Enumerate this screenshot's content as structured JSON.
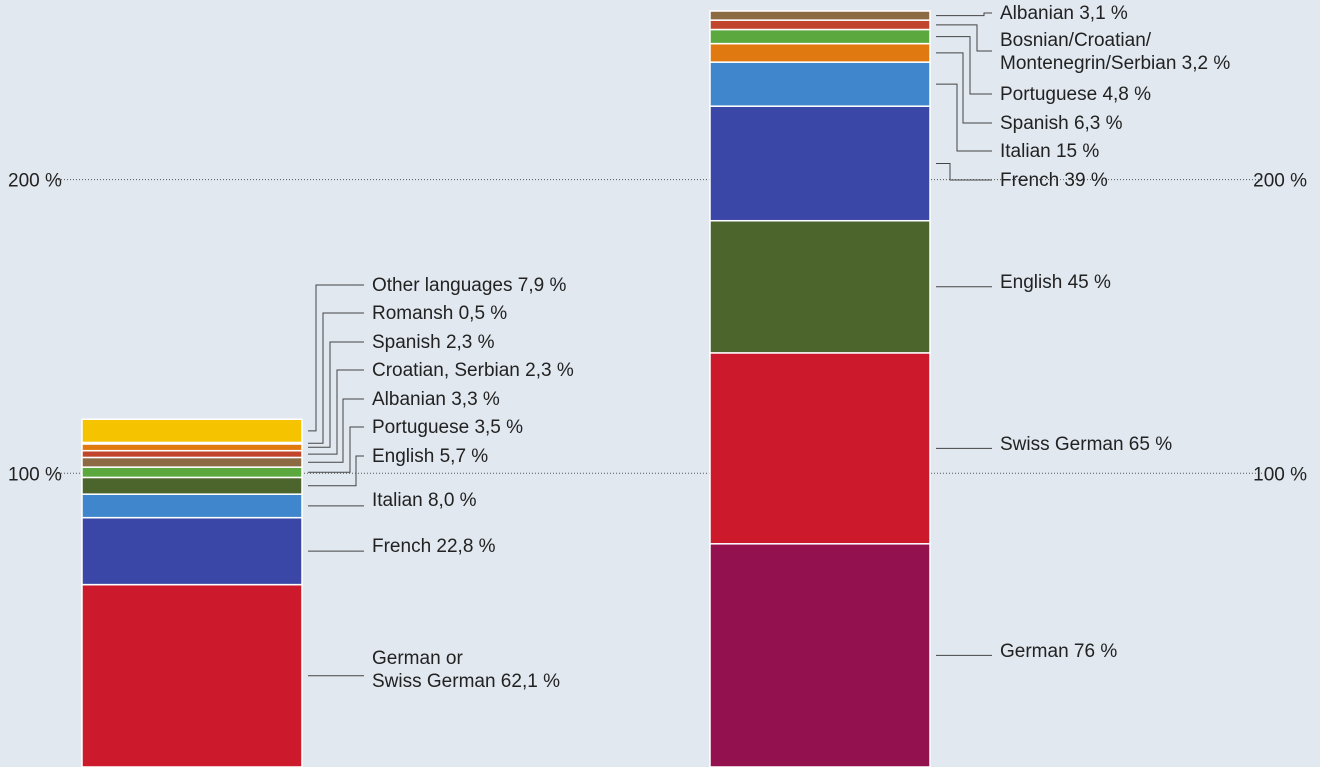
{
  "chart_data": {
    "type": "bar",
    "stacked": true,
    "y_unit": "%",
    "ylim": [
      0,
      260
    ],
    "y_ticks": [
      {
        "value": 100,
        "label": "100 %"
      },
      {
        "value": 200,
        "label": "200 %"
      }
    ],
    "grid": true,
    "legend": "none",
    "stacks": [
      {
        "segments": [
          {
            "label_lines": [
              "German or",
              "Swiss German 62,1 %"
            ],
            "value": 62.1,
            "color": "#cc1a2c"
          },
          {
            "label_lines": [
              "French 22,8 %"
            ],
            "value": 22.8,
            "color": "#3a47a6"
          },
          {
            "label_lines": [
              "Italian 8,0 %"
            ],
            "value": 8.0,
            "color": "#3f86cc"
          },
          {
            "label_lines": [
              "English 5,7 %"
            ],
            "value": 5.7,
            "color": "#4c652c"
          },
          {
            "label_lines": [
              "Portuguese 3,5 %"
            ],
            "value": 3.5,
            "color": "#5aa83e"
          },
          {
            "label_lines": [
              "Albanian 3,3 %"
            ],
            "value": 3.3,
            "color": "#8c6a44"
          },
          {
            "label_lines": [
              "Croatian, Serbian 2,3 %"
            ],
            "value": 2.3,
            "color": "#c0452c"
          },
          {
            "label_lines": [
              "Spanish 2,3 %"
            ],
            "value": 2.3,
            "color": "#e07a10"
          },
          {
            "label_lines": [
              "Romansh 0,5 %"
            ],
            "value": 0.5,
            "color": "#555555"
          },
          {
            "label_lines": [
              "Other languages 7,9 %"
            ],
            "value": 7.9,
            "color": "#f6c300"
          }
        ]
      },
      {
        "segments": [
          {
            "label_lines": [
              "German 76 %"
            ],
            "value": 76,
            "color": "#94114f"
          },
          {
            "label_lines": [
              "Swiss German 65 %"
            ],
            "value": 65,
            "color": "#cc1a2c"
          },
          {
            "label_lines": [
              "English 45 %"
            ],
            "value": 45,
            "color": "#4c652c"
          },
          {
            "label_lines": [
              "French 39 %"
            ],
            "value": 39,
            "color": "#3a47a6"
          },
          {
            "label_lines": [
              "Italian 15 %"
            ],
            "value": 15,
            "color": "#3f86cc"
          },
          {
            "label_lines": [
              "Spanish 6,3 %"
            ],
            "value": 6.3,
            "color": "#e07a10"
          },
          {
            "label_lines": [
              "Portuguese 4,8 %"
            ],
            "value": 4.8,
            "color": "#5aa83e"
          },
          {
            "label_lines": [
              "Bosnian/Croatian/",
              "Montenegrin/Serbian 3,2 %"
            ],
            "value": 3.2,
            "color": "#c0452c"
          },
          {
            "label_lines": [
              "Albanian 3,1 %"
            ],
            "value": 3.1,
            "color": "#8c6a44"
          }
        ]
      }
    ]
  }
}
